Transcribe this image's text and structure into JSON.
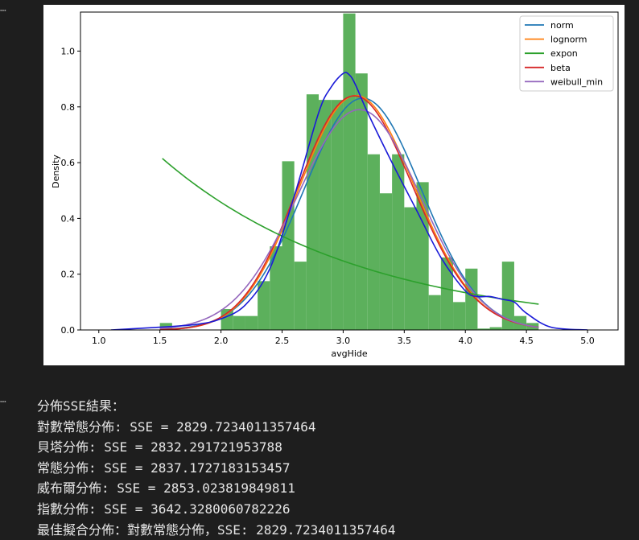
{
  "cell": {
    "ellipsis": "⋯"
  },
  "chart_data": {
    "type": "histogram+line",
    "xlabel": "avgHide",
    "ylabel": "Density",
    "xlim": [
      0.85,
      5.25
    ],
    "ylim": [
      0,
      1.14
    ],
    "xticks": [
      1.0,
      1.5,
      2.0,
      2.5,
      3.0,
      3.5,
      4.0,
      4.5,
      5.0
    ],
    "xtick_labels": [
      "1.0",
      "1.5",
      "2.0",
      "2.5",
      "3.0",
      "3.5",
      "4.0",
      "4.5",
      "5.0"
    ],
    "yticks": [
      0,
      0.2,
      0.4,
      0.6,
      0.8,
      1.0
    ],
    "ytick_labels": [
      "0.0",
      "0.2",
      "0.4",
      "0.6",
      "0.8",
      "1.0"
    ],
    "legend_position": "top-right",
    "histogram": {
      "color": "#5cb05c",
      "bin_width": 0.1,
      "bins": [
        [
          1.55,
          0.025
        ],
        [
          2.05,
          0.075
        ],
        [
          2.15,
          0.05
        ],
        [
          2.25,
          0.05
        ],
        [
          2.35,
          0.175
        ],
        [
          2.45,
          0.3
        ],
        [
          2.55,
          0.605
        ],
        [
          2.65,
          0.245
        ],
        [
          2.75,
          0.845
        ],
        [
          2.85,
          0.825
        ],
        [
          2.95,
          0.825
        ],
        [
          3.05,
          1.135
        ],
        [
          3.15,
          0.92
        ],
        [
          3.25,
          0.63
        ],
        [
          3.35,
          0.49
        ],
        [
          3.45,
          0.63
        ],
        [
          3.55,
          0.44
        ],
        [
          3.65,
          0.53
        ],
        [
          3.75,
          0.125
        ],
        [
          3.85,
          0.26
        ],
        [
          3.95,
          0.1
        ],
        [
          4.05,
          0.22
        ],
        [
          4.15,
          0.005
        ],
        [
          4.25,
          0.01
        ],
        [
          4.35,
          0.245
        ],
        [
          4.45,
          0.05
        ],
        [
          4.55,
          0.025
        ]
      ]
    },
    "kde": {
      "color": "#1a1ad8",
      "x": [
        1.1,
        1.5,
        1.8,
        2.0,
        2.2,
        2.4,
        2.6,
        2.8,
        2.9,
        3.0,
        3.05,
        3.1,
        3.2,
        3.4,
        3.6,
        3.8,
        4.0,
        4.1,
        4.2,
        4.3,
        4.4,
        4.5,
        4.7,
        5.0
      ],
      "y": [
        0.0,
        0.01,
        0.02,
        0.04,
        0.09,
        0.22,
        0.48,
        0.78,
        0.87,
        0.92,
        0.915,
        0.88,
        0.78,
        0.6,
        0.43,
        0.26,
        0.14,
        0.12,
        0.12,
        0.11,
        0.1,
        0.06,
        0.01,
        0.0
      ]
    },
    "series": [
      {
        "name": "norm",
        "color": "#1f77b4",
        "mean": 3.16,
        "sd": 0.48
      },
      {
        "name": "lognorm",
        "color": "#ff7f0e",
        "mean": 3.13,
        "sd": 0.475,
        "skew": 0.1
      },
      {
        "name": "expon",
        "color": "#2ca02c",
        "loc": 1.52,
        "rate": 0.615,
        "x_start": 1.52,
        "x_end": 4.6
      },
      {
        "name": "beta",
        "color": "#d62728",
        "mean": 3.12,
        "sd": 0.476,
        "skew": 0.12
      },
      {
        "name": "weibull_min",
        "color": "#9467bd",
        "mean": 3.12,
        "sd": 0.505,
        "skew": -0.05
      }
    ]
  },
  "output": {
    "header": "分佈SSE結果：",
    "lines": [
      "對數常態分佈: SSE = 2829.7234011357464",
      "貝塔分佈: SSE = 2832.291721953788",
      "常態分佈: SSE = 2837.1727183153457",
      "威布爾分佈: SSE = 2853.023819849811",
      "指數分佈: SSE = 3642.3280060782226"
    ],
    "best": "最佳擬合分佈：對數常態分佈，SSE: 2829.7234011357464"
  }
}
